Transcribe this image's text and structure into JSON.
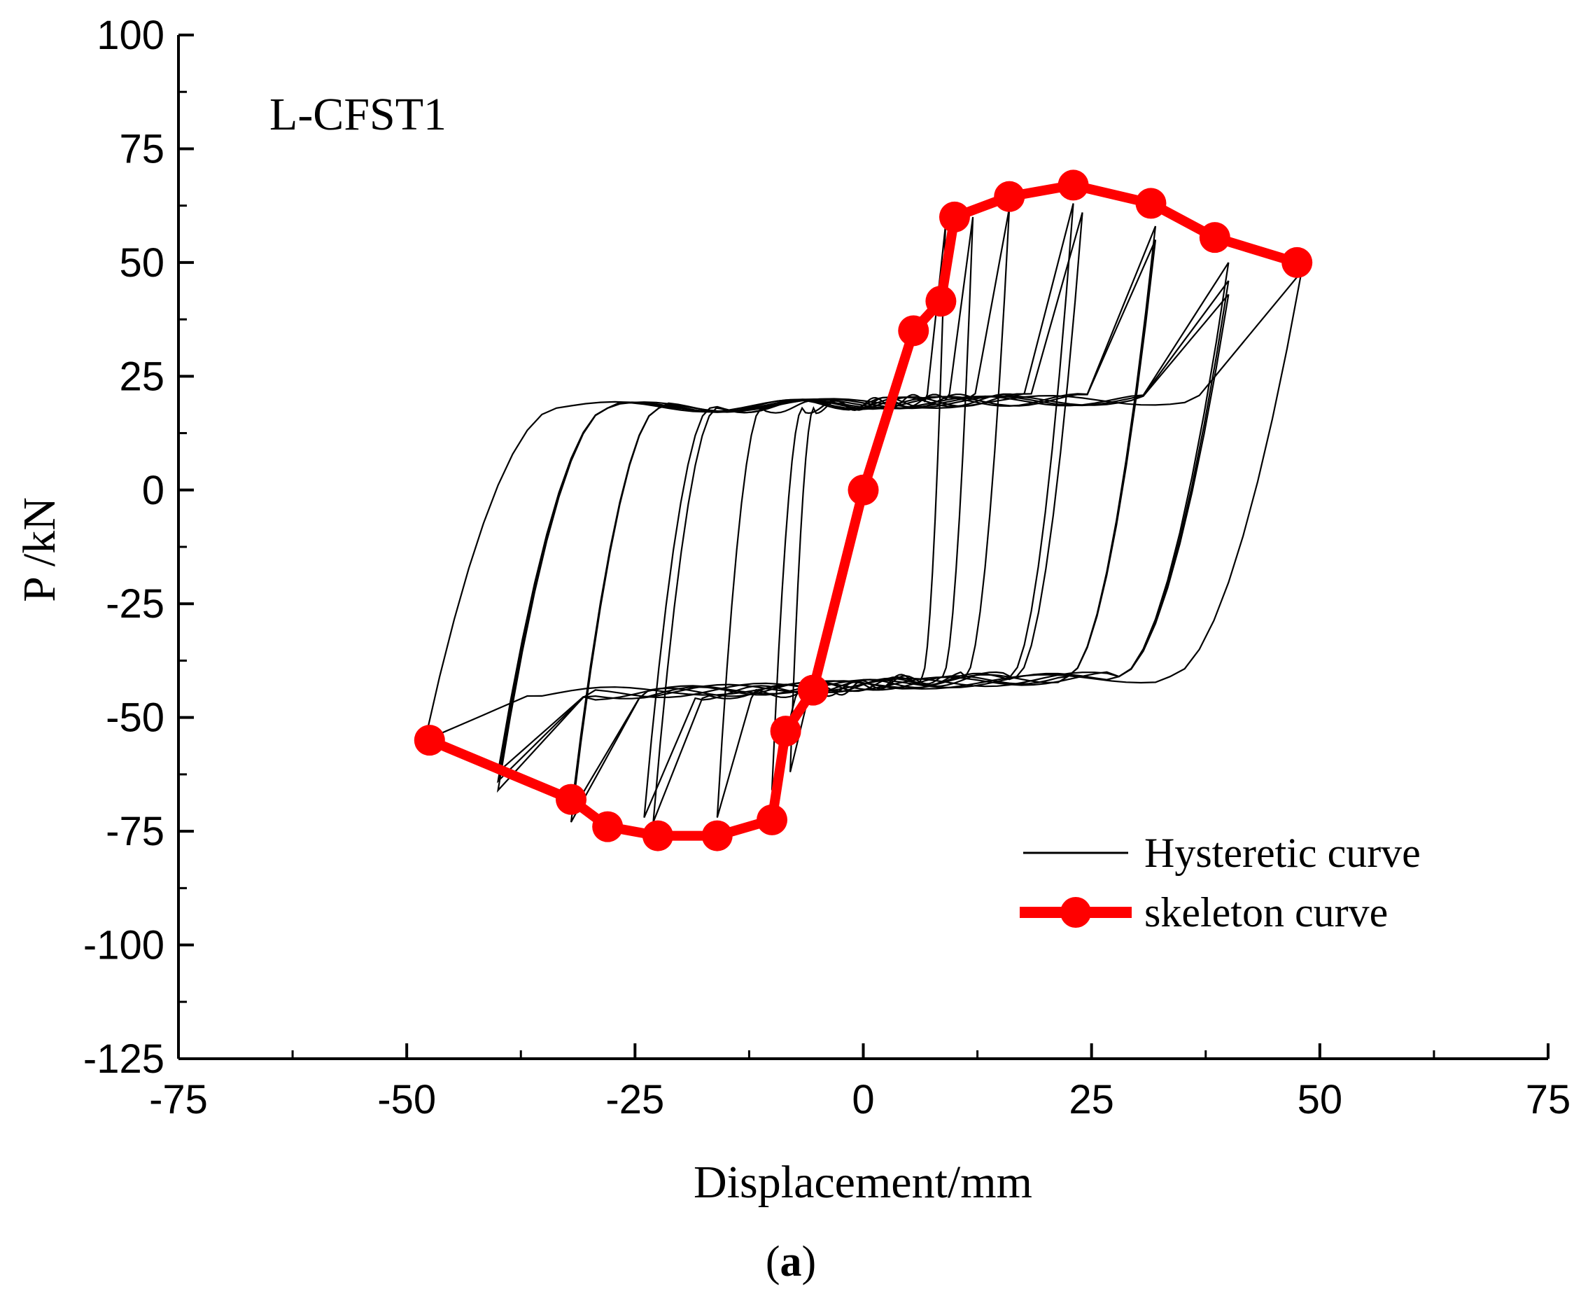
{
  "chart_data": {
    "type": "line",
    "title": "",
    "annotation": "L-CFST1",
    "caption_open": "(",
    "caption_letter": "a",
    "caption_close": ")",
    "xlabel": "Displacement/mm",
    "ylabel": "P /kN",
    "xlim": [
      -75,
      75
    ],
    "ylim": [
      -125,
      100
    ],
    "xticks": [
      -75,
      -50,
      -25,
      0,
      25,
      50,
      75
    ],
    "yticks": [
      100,
      75,
      50,
      25,
      0,
      -25,
      -50,
      -75,
      -100,
      -125
    ],
    "grid": false,
    "legend_position": "bottom-right",
    "series": [
      {
        "name": "Hysteretic curve",
        "color": "#000000",
        "loops": [
          {
            "peak_pos": [
              9,
              58
            ],
            "peak_neg": [
              -8,
              -62
            ]
          },
          {
            "peak_pos": [
              12,
              60
            ],
            "peak_neg": [
              -10,
              -66
            ]
          },
          {
            "peak_pos": [
              16,
              62
            ],
            "peak_neg": [
              -16,
              -72
            ]
          },
          {
            "peak_pos": [
              23,
              63
            ],
            "peak_neg": [
              -23,
              -73
            ]
          },
          {
            "peak_pos": [
              24,
              61
            ],
            "peak_neg": [
              -24,
              -72
            ]
          },
          {
            "peak_pos": [
              32,
              58
            ],
            "peak_neg": [
              -32,
              -73
            ]
          },
          {
            "peak_pos": [
              32,
              55
            ],
            "peak_neg": [
              -32,
              -71
            ]
          },
          {
            "peak_pos": [
              40,
              50
            ],
            "peak_neg": [
              -40,
              -66
            ]
          },
          {
            "peak_pos": [
              40,
              46
            ],
            "peak_neg": [
              -40,
              -64
            ]
          },
          {
            "peak_pos": [
              40,
              43
            ],
            "peak_neg": [
              -40,
              -62
            ]
          },
          {
            "peak_pos": [
              48,
              48
            ],
            "peak_neg": [
              -48,
              -55
            ]
          }
        ]
      },
      {
        "name": "skeleton curve",
        "color": "#ff0000",
        "x": [
          -47.5,
          -32,
          -28,
          -22.5,
          -16,
          -10,
          -8.5,
          -5.5,
          0,
          5.5,
          8.5,
          10,
          16,
          23,
          31.5,
          38.5,
          47.5
        ],
        "y": [
          -55,
          -68,
          -74,
          -76,
          -76,
          -72.5,
          -53,
          -44,
          0,
          35,
          41.5,
          60,
          64.5,
          67,
          63,
          55.5,
          50
        ]
      }
    ]
  }
}
